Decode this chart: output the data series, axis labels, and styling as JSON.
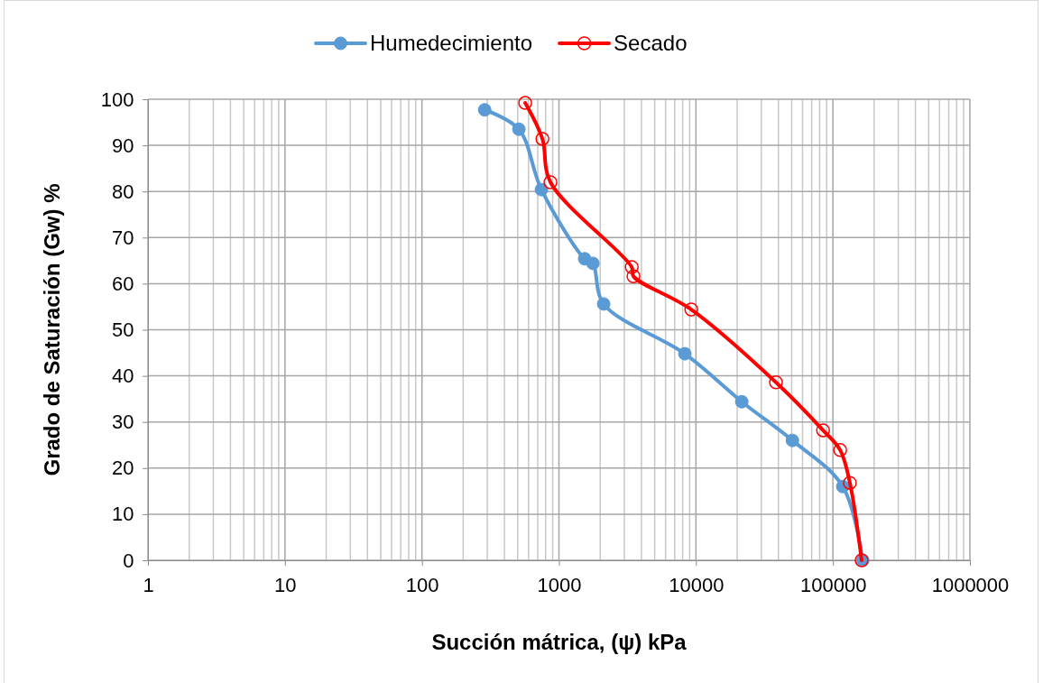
{
  "chart_data": {
    "type": "line",
    "xlabel": "Succión mátrica, (ψ) kPa",
    "ylabel": "Grado de Saturación (Gw) %",
    "log": "x",
    "xlim": [
      1,
      1000000
    ],
    "xticks": [
      1,
      10,
      100,
      1000,
      10000,
      100000,
      1000000
    ],
    "ylim": [
      0,
      100
    ],
    "yticks": [
      0,
      10,
      20,
      30,
      40,
      50,
      60,
      70,
      80,
      90,
      100
    ],
    "grid": true,
    "legend": "top",
    "line_style": "solid",
    "series": [
      {
        "name": "Humedecimiento",
        "color": "#5b9bd5",
        "marker": "circle",
        "x": [
          287,
          510,
          745,
          1540,
          1770,
          2120,
          8300,
          21600,
          50600,
          118000,
          165000
        ],
        "values": [
          97.7,
          93.5,
          80.4,
          65.4,
          64.4,
          55.6,
          44.8,
          34.4,
          26.0,
          16.0,
          0
        ]
      },
      {
        "name": "Secado",
        "color": "#ff0000",
        "marker": "circle-open",
        "x": [
          567,
          757,
          867,
          3400,
          3500,
          9250,
          38400,
          84700,
          113000,
          133000,
          162000
        ],
        "values": [
          99.2,
          91.4,
          82.0,
          63.6,
          61.6,
          54.4,
          38.6,
          28.2,
          23.9,
          16.8,
          0
        ]
      }
    ]
  }
}
